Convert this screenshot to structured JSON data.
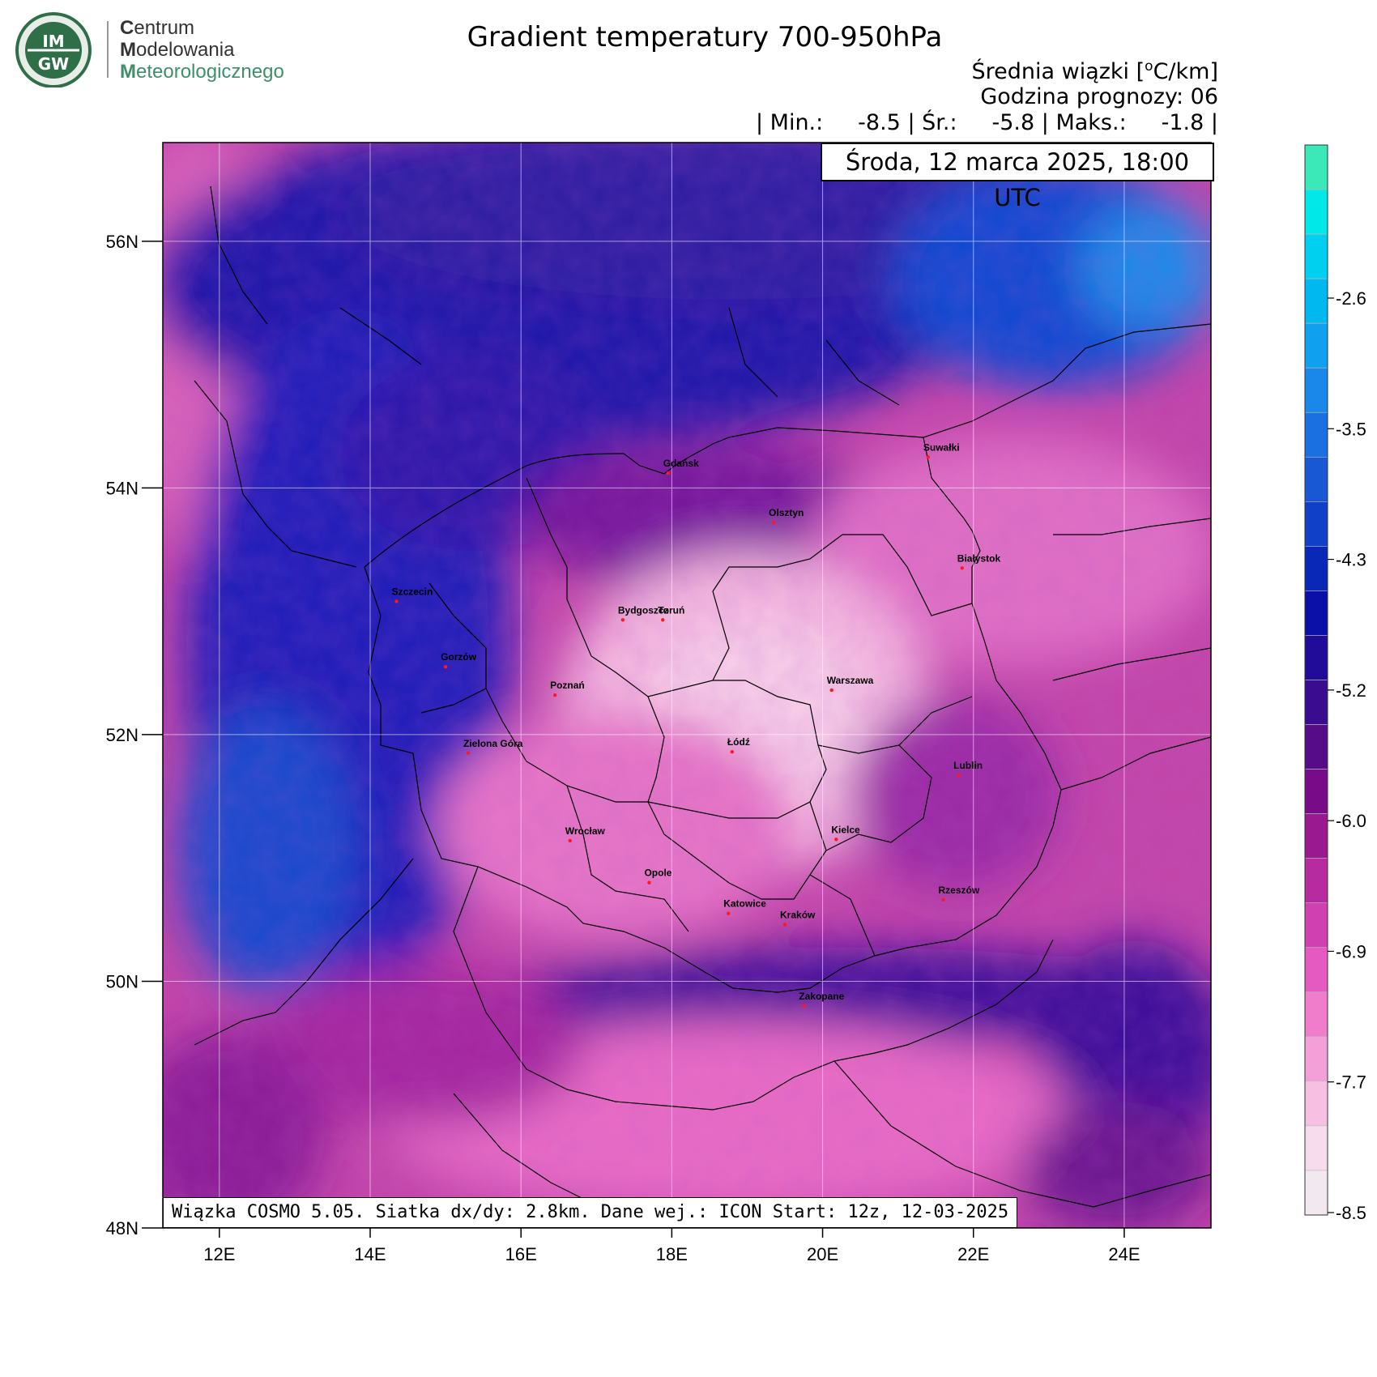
{
  "logo": {
    "badge_top": "IM",
    "badge_bottom": "GW",
    "line1_initial": "C",
    "line1_rest": "entrum",
    "line2_initial": "M",
    "line2_rest": "odelowania",
    "line3_initial": "M",
    "line3_rest": "eteorologicznego"
  },
  "title": "Gradient temperatury 700-950hPa",
  "subtitle_line1": "Średnia wiązki [",
  "subtitle_unit_sup": "o",
  "subtitle_unit_rest": "C/km]",
  "subtitle_line2": "Godzina prognozy: 06",
  "stats": {
    "min_label": "| Min.:",
    "min_value": "-8.5",
    "avg_label": "| Śr.:",
    "avg_value": "-5.8",
    "max_label": "| Maks.:",
    "max_value": "-1.8",
    "end": "|"
  },
  "valid_time": "Środa, 12 marca 2025, 18:00 UTC",
  "model_info": "Wiązka COSMO 5.05. Siatka dx/dy: 2.8km. Dane wej.: ICON Start: 12z, 12-03-2025",
  "map": {
    "lon_ticks": [
      {
        "value": 12,
        "label": "12E"
      },
      {
        "value": 14,
        "label": "14E"
      },
      {
        "value": 16,
        "label": "16E"
      },
      {
        "value": 18,
        "label": "18E"
      },
      {
        "value": 20,
        "label": "20E"
      },
      {
        "value": 22,
        "label": "22E"
      },
      {
        "value": 24,
        "label": "24E"
      }
    ],
    "lat_ticks": [
      {
        "value": 48,
        "label": "48N"
      },
      {
        "value": 50,
        "label": "50N"
      },
      {
        "value": 52,
        "label": "52N"
      },
      {
        "value": 54,
        "label": "54N"
      },
      {
        "value": 56,
        "label": "56N"
      }
    ],
    "lon_range": [
      11.25,
      25.15
    ],
    "lat_range": [
      48.0,
      56.8
    ],
    "cities": [
      {
        "name": "Gdańsk",
        "lon": 17.95,
        "lat": 54.12
      },
      {
        "name": "Suwałki",
        "lon": 21.4,
        "lat": 54.25
      },
      {
        "name": "Olsztyn",
        "lon": 19.35,
        "lat": 53.72
      },
      {
        "name": "Białystok",
        "lon": 21.85,
        "lat": 53.35
      },
      {
        "name": "Szczecin",
        "lon": 14.35,
        "lat": 53.08
      },
      {
        "name": "Bydgoszcz",
        "lon": 17.35,
        "lat": 52.93
      },
      {
        "name": "Toruń",
        "lon": 17.88,
        "lat": 52.93
      },
      {
        "name": "Gorzów",
        "lon": 15.0,
        "lat": 52.55
      },
      {
        "name": "Poznań",
        "lon": 16.45,
        "lat": 52.32
      },
      {
        "name": "Warszawa",
        "lon": 20.12,
        "lat": 52.36
      },
      {
        "name": "Łódź",
        "lon": 18.8,
        "lat": 51.86
      },
      {
        "name": "Zielona Góra",
        "lon": 15.3,
        "lat": 51.85
      },
      {
        "name": "Lublin",
        "lon": 21.8,
        "lat": 51.67
      },
      {
        "name": "Wrocław",
        "lon": 16.65,
        "lat": 51.14
      },
      {
        "name": "Kielce",
        "lon": 20.18,
        "lat": 51.15
      },
      {
        "name": "Opole",
        "lon": 17.7,
        "lat": 50.8
      },
      {
        "name": "Rzeszów",
        "lon": 21.6,
        "lat": 50.66
      },
      {
        "name": "Katowice",
        "lon": 18.75,
        "lat": 50.55
      },
      {
        "name": "Kraków",
        "lon": 19.5,
        "lat": 50.46
      },
      {
        "name": "Zakopane",
        "lon": 19.75,
        "lat": 49.8
      }
    ]
  },
  "colorbar": {
    "levels_count": 21,
    "labels": [
      "-2.6",
      "-3.5",
      "-4.3",
      "-5.2",
      "-6.0",
      "-6.9",
      "-7.7",
      "-8.5"
    ],
    "colors_top_to_bottom": [
      "#3ae8b8",
      "#00e8e8",
      "#00d0f0",
      "#00b8f0",
      "#10a0f0",
      "#1a88ea",
      "#1a70e0",
      "#1858d4",
      "#1040c8",
      "#0a28b8",
      "#0a10a8",
      "#200c98",
      "#3a0c90",
      "#560c88",
      "#780c88",
      "#9a1890",
      "#b82aa0",
      "#d040b0",
      "#e45ac0",
      "#f07ccc",
      "#f4a0d8",
      "#f6c0e2",
      "#f6dcec",
      "#f2e8f0"
    ]
  }
}
